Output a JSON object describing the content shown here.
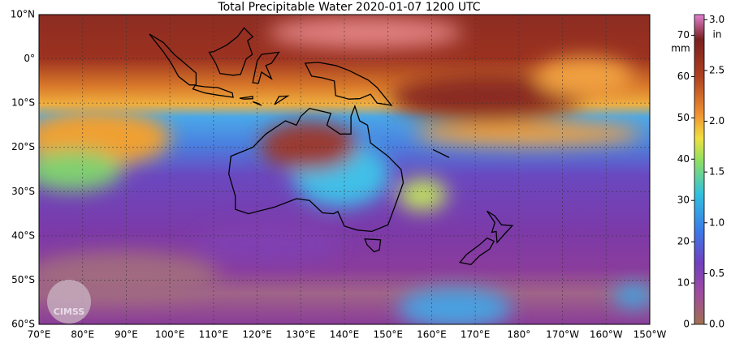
{
  "title": "Total Precipitable Water  2020-01-07 1200 UTC",
  "lat_labels": [
    "10°N",
    "0°",
    "10°S",
    "20°S",
    "30°S",
    "40°S",
    "50°S",
    "60°S"
  ],
  "lon_labels": [
    "70°E",
    "80°E",
    "90°E",
    "100°E",
    "110°E",
    "120°E",
    "130°E",
    "140°E",
    "150°E",
    "160°E",
    "170°E",
    "180°",
    "170°W",
    "160°W",
    "150°W"
  ],
  "colorbar": {
    "mm_label": "mm",
    "in_label": "in",
    "mm_lim": [
      0,
      75
    ],
    "mm_ticks": [
      0,
      10,
      20,
      30,
      40,
      50,
      60,
      70
    ],
    "in_lim": [
      0,
      3.05
    ],
    "in_ticks": [
      {
        "value": 0,
        "label": "0.0"
      },
      0.5,
      {
        "value": 1,
        "label": "1.0"
      },
      1.5,
      {
        "value": 2,
        "label": "2.0"
      },
      2.5,
      {
        "value": 3,
        "label": "3.0"
      }
    ]
  },
  "logo": "CIMSS"
}
